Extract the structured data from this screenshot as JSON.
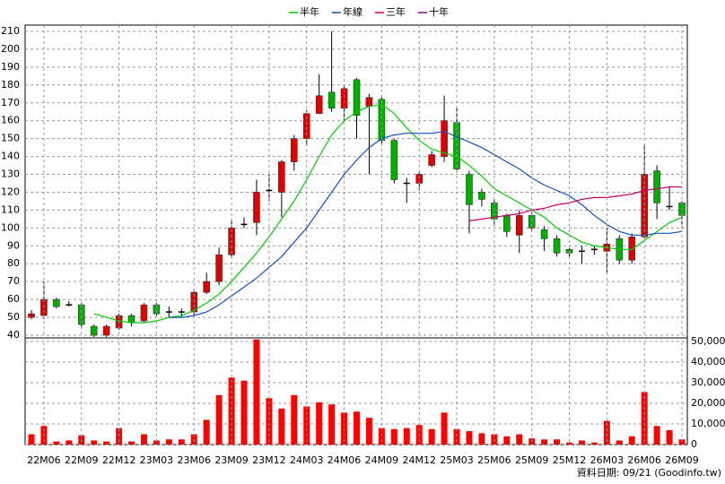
{
  "chart_data": [
    {
      "type": "candlestick",
      "up_color": "#e00000",
      "down_color": "#00b000",
      "flat_color": "#000000",
      "grid": true,
      "ylim": [
        38.5,
        213.5
      ],
      "yticks": [
        40,
        50,
        60,
        70,
        80,
        90,
        100,
        110,
        120,
        130,
        140,
        150,
        160,
        170,
        180,
        190,
        200,
        210
      ],
      "open": [
        50,
        51,
        60,
        57,
        57,
        45,
        40,
        44,
        51,
        48,
        57,
        53,
        53,
        53,
        64,
        70,
        85,
        102,
        103,
        121,
        120,
        137,
        150,
        164,
        176,
        167,
        183,
        168,
        172,
        149,
        125,
        125,
        135,
        140,
        159,
        130,
        120,
        114,
        107,
        96,
        107,
        99,
        94,
        88,
        87,
        88,
        87,
        94,
        82,
        95,
        132,
        112,
        114
      ],
      "high": [
        54,
        70,
        61,
        59,
        58,
        46,
        46,
        52,
        52,
        58,
        58,
        56,
        55,
        65,
        75,
        89,
        105,
        106,
        127,
        130,
        138,
        152,
        166,
        186,
        210,
        180,
        184,
        175,
        174,
        150,
        128,
        132,
        143,
        174,
        168,
        132,
        122,
        116,
        108,
        110,
        109,
        101,
        96,
        90,
        90,
        90,
        100,
        96,
        97,
        147,
        135,
        123,
        115
      ],
      "low": [
        49,
        49,
        55,
        56,
        44,
        39,
        39,
        43,
        45,
        47,
        51,
        50,
        50,
        51,
        63,
        68,
        83,
        100,
        96,
        115,
        106,
        132,
        146,
        165,
        165,
        160,
        150,
        130,
        147,
        125,
        114,
        121,
        134,
        137,
        131,
        97,
        112,
        101,
        95,
        86,
        98,
        87,
        84,
        84,
        80,
        85,
        75,
        80,
        80,
        94,
        105,
        110,
        100
      ],
      "close": [
        52,
        60,
        56,
        57,
        46,
        40,
        45,
        51,
        47,
        57,
        52,
        53,
        53,
        64,
        70,
        85,
        100,
        102,
        120,
        121,
        137,
        150,
        164,
        174,
        167,
        178,
        163,
        173,
        149,
        127,
        125,
        130,
        141,
        160,
        133,
        113,
        116,
        105,
        98,
        107,
        100,
        94,
        86,
        86,
        87,
        88,
        91,
        82,
        95,
        130,
        114,
        112,
        107
      ],
      "series": [
        {
          "name": "半年",
          "color": "#00cc00",
          "values": [
            null,
            null,
            null,
            null,
            null,
            52,
            50,
            48,
            47,
            47,
            48,
            50,
            51,
            54,
            58,
            63,
            70,
            78,
            86,
            95,
            105,
            115,
            127,
            140,
            152,
            160,
            165,
            168,
            169,
            164,
            156,
            149,
            144,
            142,
            140,
            135,
            129,
            122,
            118,
            114,
            110,
            106,
            100,
            96,
            92,
            90,
            89,
            88,
            88,
            93,
            98,
            103,
            106
          ]
        },
        {
          "name": "年線",
          "color": "#1050c0",
          "values": [
            null,
            null,
            null,
            null,
            null,
            null,
            null,
            null,
            null,
            null,
            null,
            50,
            50,
            51,
            53,
            57,
            62,
            67,
            72,
            78,
            84,
            92,
            100,
            110,
            120,
            130,
            138,
            145,
            150,
            152,
            153,
            153,
            153,
            154,
            151,
            148,
            145,
            141,
            137,
            133,
            128,
            124,
            121,
            118,
            113,
            107,
            102,
            98,
            96,
            96,
            97,
            97,
            98
          ]
        },
        {
          "name": "三年",
          "color": "#cc0066",
          "values": [
            null,
            null,
            null,
            null,
            null,
            null,
            null,
            null,
            null,
            null,
            null,
            null,
            null,
            null,
            null,
            null,
            null,
            null,
            null,
            null,
            null,
            null,
            null,
            null,
            null,
            null,
            null,
            null,
            null,
            null,
            null,
            null,
            null,
            null,
            null,
            104,
            105,
            106,
            107,
            108,
            110,
            111,
            113,
            114,
            116,
            117,
            117,
            118,
            119,
            121,
            122,
            123,
            123
          ]
        },
        {
          "name": "十年",
          "color": "#800080",
          "values": [
            null,
            null,
            null,
            null,
            null,
            null,
            null,
            null,
            null,
            null,
            null,
            null,
            null,
            null,
            null,
            null,
            null,
            null,
            null,
            null,
            null,
            null,
            null,
            null,
            null,
            null,
            null,
            null,
            null,
            null,
            null,
            null,
            null,
            null,
            null,
            null,
            null,
            null,
            null,
            null,
            null,
            null,
            null,
            null,
            null,
            null,
            null,
            null,
            null,
            null,
            null,
            null,
            null
          ]
        }
      ]
    },
    {
      "type": "bar",
      "color": "#ff0000",
      "grid": true,
      "ylim": [
        0,
        51750
      ],
      "yticks": [
        0,
        {
          "value": 10000,
          "label": "10,000"
        },
        {
          "value": 20000,
          "label": "20,000"
        },
        {
          "value": 30000,
          "label": "30,000"
        },
        {
          "value": 40000,
          "label": "40,000"
        },
        {
          "value": 50000,
          "label": "50,000"
        }
      ],
      "categories": [
        null,
        "22M06",
        null,
        null,
        "22M09",
        null,
        null,
        "22M12",
        null,
        null,
        "23M03",
        null,
        null,
        "23M06",
        null,
        null,
        "23M09",
        null,
        null,
        "23M12",
        null,
        null,
        "24M03",
        null,
        null,
        "24M06",
        null,
        null,
        "24M09",
        null,
        null,
        "24M12",
        null,
        null,
        "25M03",
        null,
        null,
        "25M06",
        null,
        null,
        "25M09",
        null,
        null,
        "25M12",
        null,
        null,
        "26M03",
        null,
        null,
        "26M06",
        null,
        null,
        "26M09"
      ],
      "values": [
        5000,
        9000,
        1500,
        2000,
        4500,
        2000,
        1500,
        8000,
        1500,
        5000,
        2000,
        2500,
        2500,
        5000,
        12000,
        24000,
        32500,
        31000,
        51000,
        22500,
        17500,
        24000,
        18500,
        20500,
        19500,
        15500,
        16000,
        13000,
        8000,
        7500,
        8000,
        9500,
        7500,
        15500,
        7500,
        6500,
        5500,
        5000,
        4000,
        5000,
        3000,
        2500,
        2500,
        1000,
        2000,
        1000,
        11500,
        2000,
        4000,
        25500,
        9000,
        7000,
        2500
      ],
      "footnote": "資料日期: 09/21 (Goodinfo.tw)"
    }
  ]
}
